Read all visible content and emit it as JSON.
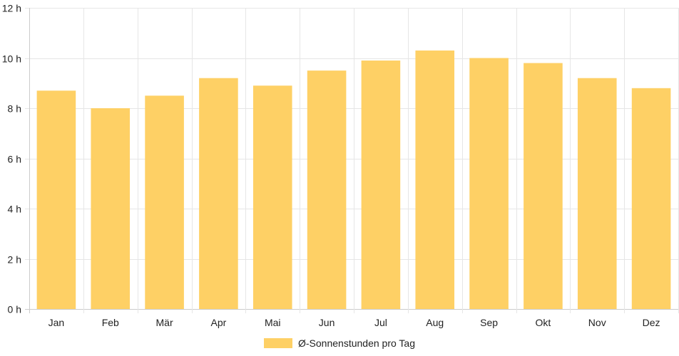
{
  "chart_data": {
    "type": "bar",
    "categories": [
      "Jan",
      "Feb",
      "Mär",
      "Apr",
      "Mai",
      "Jun",
      "Jul",
      "Aug",
      "Sep",
      "Okt",
      "Nov",
      "Dez"
    ],
    "series": [
      {
        "name": "Ø-Sonnenstunden pro Tag",
        "values": [
          8.7,
          8.0,
          8.5,
          9.2,
          8.9,
          9.5,
          9.9,
          10.3,
          10.0,
          9.8,
          9.2,
          8.8
        ]
      }
    ],
    "y_ticks": [
      0,
      2,
      4,
      6,
      8,
      10,
      12
    ],
    "y_unit": "h",
    "ylim": [
      0,
      12
    ],
    "grid": true,
    "legend_position": "bottom",
    "colors": {
      "bar": "#fed065",
      "grid": "#e6e6e6",
      "axis": "#cccccc"
    }
  }
}
